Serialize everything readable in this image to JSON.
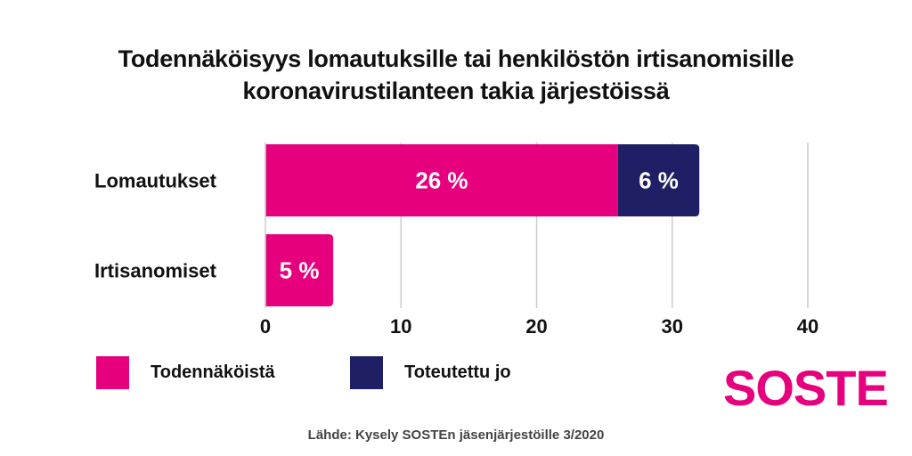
{
  "title_lines": [
    "Todennäköisyys lomautuksille tai henkilöstön irtisanomisille",
    "koronavirustilanteen takia järjestöissä"
  ],
  "colors": {
    "pink": "#E6007E",
    "navy": "#1F1F66",
    "grid": "#cccccc",
    "text": "#111111"
  },
  "chart_data": {
    "type": "bar",
    "orientation": "horizontal",
    "stacked": true,
    "categories": [
      "Lomautukset",
      "Irtisanomiset"
    ],
    "series": [
      {
        "name": "Todennäköistä",
        "values": [
          26,
          5
        ],
        "labels": [
          "26 %",
          "5 %"
        ],
        "color": "#E6007E"
      },
      {
        "name": "Toteutettu jo",
        "values": [
          6,
          0
        ],
        "labels": [
          "6 %",
          ""
        ],
        "color": "#1F1F66"
      }
    ],
    "xlim": [
      0,
      40
    ],
    "xticks": [
      0,
      10,
      20,
      30,
      40
    ],
    "xtick_labels": [
      "0",
      "10",
      "20",
      "30",
      "40"
    ],
    "grid": true,
    "legend_position": "bottom-left"
  },
  "logo_text": "SOSTE",
  "source": "Lähde: Kysely SOSTEn jäsenjärjestöille 3/2020"
}
